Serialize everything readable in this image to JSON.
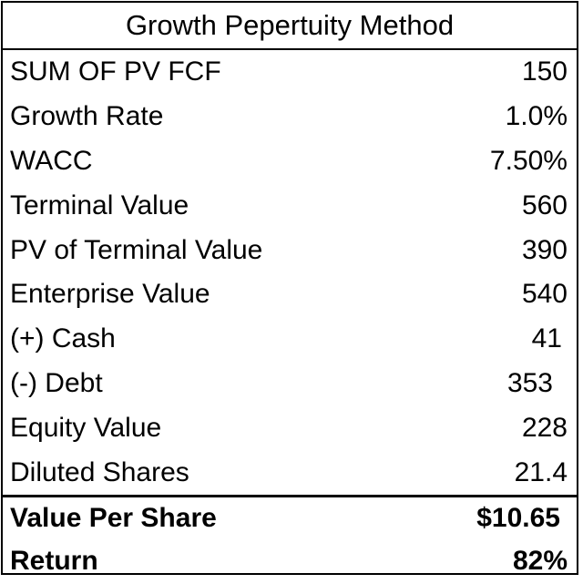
{
  "title": "Growth Pepertuity Method",
  "rows": [
    {
      "label": "SUM OF PV FCF",
      "value": "150"
    },
    {
      "label": "Growth Rate",
      "value": "1.0%"
    },
    {
      "label": "WACC",
      "value": "7.50%"
    },
    {
      "label": "Terminal Value",
      "value": "560"
    },
    {
      "label": "PV of Terminal Value",
      "value": "390"
    },
    {
      "label": "Enterprise Value",
      "value": "540"
    },
    {
      "label": "(+) Cash",
      "value": "41"
    },
    {
      "label": "(-) Debt",
      "value": "353"
    },
    {
      "label": "Equity Value",
      "value": "228"
    },
    {
      "label": "Diluted Shares",
      "value": "21.4"
    },
    {
      "label": "Value Per Share",
      "value": "$10.65"
    },
    {
      "label": "Return",
      "value": "82%"
    }
  ]
}
